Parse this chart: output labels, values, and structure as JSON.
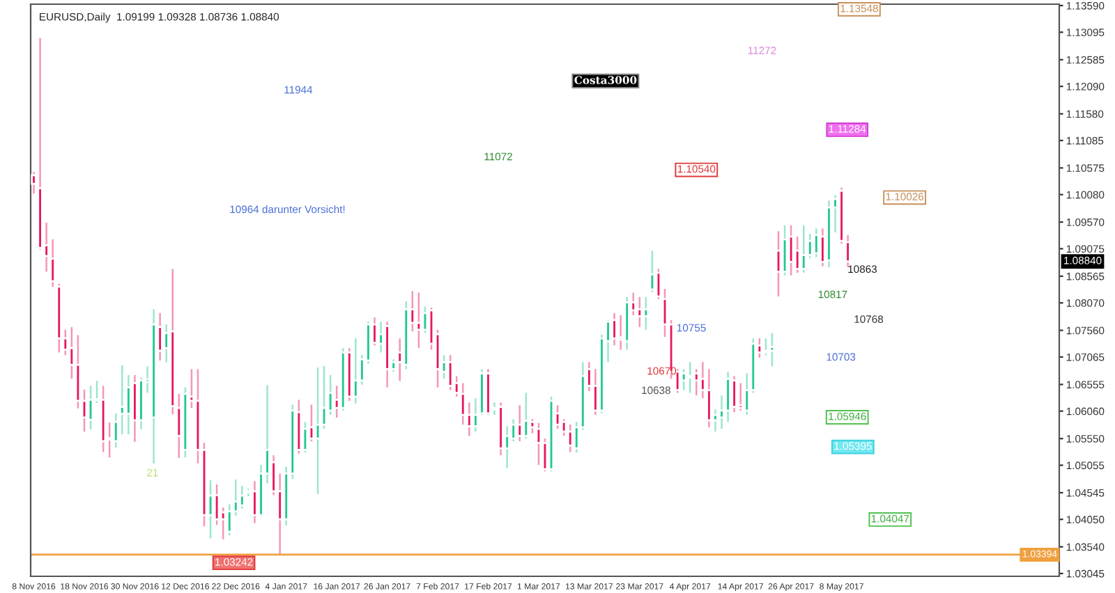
{
  "chart_data": {
    "type": "candlestick",
    "title": "EURUSD,Daily  1.09199 1.09328 1.08736 1.08840",
    "categories": [
      "8 Nov 2016",
      null,
      null,
      null,
      null,
      null,
      null,
      null,
      "18 Nov 2016",
      null,
      null,
      null,
      null,
      null,
      null,
      null,
      "30 Nov 2016",
      null,
      null,
      null,
      null,
      null,
      null,
      null,
      "12 Dec 2016",
      null,
      null,
      null,
      null,
      null,
      null,
      null,
      "22 Dec 2016",
      null,
      null,
      null,
      null,
      null,
      null,
      null,
      "4 Jan 2017",
      null,
      null,
      null,
      null,
      null,
      null,
      null,
      "16 Jan 2017",
      null,
      null,
      null,
      null,
      null,
      null,
      null,
      "26 Jan 2017",
      null,
      null,
      null,
      null,
      null,
      null,
      null,
      "7 Feb 2017",
      null,
      null,
      null,
      null,
      null,
      null,
      null,
      "17 Feb 2017",
      null,
      null,
      null,
      null,
      null,
      null,
      null,
      "1 Mar 2017",
      null,
      null,
      null,
      null,
      null,
      null,
      null,
      "13 Mar 2017",
      null,
      null,
      null,
      null,
      null,
      null,
      null,
      "23 Mar 2017",
      null,
      null,
      null,
      null,
      null,
      null,
      null,
      "4 Apr 2017",
      null,
      null,
      null,
      null,
      null,
      null,
      null,
      "14 Apr 2017",
      null,
      null,
      null,
      null,
      null,
      null,
      null,
      "26 Apr 2017",
      null,
      null,
      null,
      null,
      null,
      null,
      null,
      "8 May 2017",
      null,
      null,
      null,
      null,
      null,
      null,
      null,
      null,
      null,
      null,
      null,
      null,
      null,
      null,
      null,
      null,
      null,
      null,
      null,
      null,
      null,
      null,
      null,
      null,
      null,
      null,
      null,
      null,
      null,
      null,
      null,
      null,
      null,
      null
    ],
    "ohlc": [
      [
        1.1044,
        1.105,
        1.101,
        1.1028
      ],
      [
        1.102,
        1.1299,
        1.0906,
        1.0909
      ],
      [
        1.0914,
        1.0956,
        1.0865,
        1.0894
      ],
      [
        1.0889,
        1.0925,
        1.0837,
        1.0847
      ],
      [
        1.0837,
        1.0842,
        1.0715,
        1.0741
      ],
      [
        1.0741,
        1.0757,
        1.071,
        1.072
      ],
      [
        1.0723,
        1.0762,
        1.0666,
        1.0692
      ],
      [
        1.0692,
        1.0747,
        1.0611,
        1.0625
      ],
      [
        1.0625,
        1.0646,
        1.0568,
        1.0594
      ],
      [
        1.059,
        1.0653,
        1.0572,
        1.0627
      ],
      [
        1.0626,
        1.0662,
        1.0621,
        1.0628
      ],
      [
        1.0627,
        1.0653,
        1.053,
        1.055
      ],
      [
        1.0556,
        1.0585,
        1.052,
        1.0553
      ],
      [
        1.055,
        1.0602,
        1.0538,
        1.0586
      ],
      [
        1.0601,
        1.0691,
        1.0563,
        1.0614
      ],
      [
        1.0601,
        1.0673,
        1.0563,
        1.065
      ],
      [
        1.0658,
        1.0673,
        1.0549,
        1.0589
      ],
      [
        1.0589,
        1.0668,
        1.0572,
        1.0663
      ],
      [
        1.066,
        1.0689,
        1.064,
        1.0665
      ],
      [
        1.0594,
        1.0795,
        1.0509,
        1.0767
      ],
      [
        1.0762,
        1.0788,
        1.07,
        1.0718
      ],
      [
        1.0723,
        1.0767,
        1.0697,
        1.0751
      ],
      [
        1.0754,
        1.087,
        1.06,
        1.0615
      ],
      [
        1.0612,
        1.0638,
        1.0519,
        1.056
      ],
      [
        1.0534,
        1.065,
        1.052,
        1.0638
      ],
      [
        1.0633,
        1.0684,
        1.0612,
        1.0625
      ],
      [
        1.0625,
        1.0684,
        1.0509,
        1.0534
      ],
      [
        1.0534,
        1.0547,
        1.0392,
        1.0413
      ],
      [
        1.0413,
        1.0478,
        1.037,
        1.0449
      ],
      [
        1.045,
        1.047,
        1.0395,
        1.0405
      ],
      [
        1.0418,
        1.0427,
        1.0368,
        1.0405
      ],
      [
        1.0382,
        1.0433,
        1.0375,
        1.042
      ],
      [
        1.042,
        1.0479,
        1.0412,
        1.0438
      ],
      [
        1.0431,
        1.0467,
        1.0425,
        1.0449
      ],
      [
        1.0455,
        1.0462,
        1.0448,
        1.0458
      ],
      [
        1.0457,
        1.0476,
        1.0398,
        1.0413
      ],
      [
        1.0413,
        1.0506,
        1.041,
        1.049
      ],
      [
        1.049,
        1.0654,
        1.0472,
        1.0534
      ],
      [
        1.0511,
        1.0524,
        1.045,
        1.0457
      ],
      [
        1.0457,
        1.049,
        1.0341,
        1.0405
      ],
      [
        1.0405,
        1.0503,
        1.0394,
        1.049
      ],
      [
        1.049,
        1.0618,
        1.048,
        1.0607
      ],
      [
        1.0604,
        1.0627,
        1.0527,
        1.0534
      ],
      [
        1.0534,
        1.0586,
        1.0529,
        1.0573
      ],
      [
        1.0576,
        1.0618,
        1.055,
        1.0555
      ],
      [
        1.0555,
        1.0687,
        1.0452,
        1.0581
      ],
      [
        1.0581,
        1.069,
        1.0573,
        1.0612
      ],
      [
        1.0607,
        1.0673,
        1.0599,
        1.064
      ],
      [
        1.0627,
        1.0653,
        1.0594,
        1.0612
      ],
      [
        1.0612,
        1.0723,
        1.0607,
        1.0715
      ],
      [
        1.0715,
        1.0723,
        1.0625,
        1.0633
      ],
      [
        1.0633,
        1.0741,
        1.062,
        1.0663
      ],
      [
        1.0663,
        1.071,
        1.0655,
        1.0702
      ],
      [
        1.07,
        1.0772,
        1.0694,
        1.0767
      ],
      [
        1.0767,
        1.078,
        1.0728,
        1.0733
      ],
      [
        1.0731,
        1.0772,
        1.0715,
        1.0749
      ],
      [
        1.0764,
        1.0772,
        1.065,
        1.0684
      ],
      [
        1.0684,
        1.0702,
        1.0679,
        1.0697
      ],
      [
        1.0715,
        1.0741,
        1.0662,
        1.0697
      ],
      [
        1.0692,
        1.081,
        1.0684,
        1.0795
      ],
      [
        1.0795,
        1.0829,
        1.0754,
        1.077
      ],
      [
        1.077,
        1.0826,
        1.0723,
        1.0757
      ],
      [
        1.0757,
        1.08,
        1.0751,
        1.0788
      ],
      [
        1.0793,
        1.0798,
        1.072,
        1.0731
      ],
      [
        1.0749,
        1.0757,
        1.065,
        1.0684
      ],
      [
        1.0679,
        1.071,
        1.0666,
        1.0697
      ],
      [
        1.0697,
        1.071,
        1.0645,
        1.0653
      ],
      [
        1.0658,
        1.0671,
        1.0633,
        1.064
      ],
      [
        1.0638,
        1.0658,
        1.0581,
        1.0599
      ],
      [
        1.0599,
        1.0622,
        1.056,
        1.0578
      ],
      [
        1.0578,
        1.063,
        1.0568,
        1.0599
      ],
      [
        1.0602,
        1.0684,
        1.0599,
        1.0676
      ],
      [
        1.0676,
        1.0684,
        1.0599,
        1.0602
      ],
      [
        1.0609,
        1.0622,
        1.0599,
        1.0612
      ],
      [
        1.0614,
        1.0622,
        1.0524,
        1.0537
      ],
      [
        1.0537,
        1.0578,
        1.05,
        1.056
      ],
      [
        1.0555,
        1.0591,
        1.055,
        1.0581
      ],
      [
        1.0581,
        1.0617,
        1.055,
        1.056
      ],
      [
        1.056,
        1.064,
        1.0555,
        1.0588
      ],
      [
        1.0586,
        1.0591,
        1.0565,
        1.0576
      ],
      [
        1.0573,
        1.0584,
        1.0506,
        1.0547
      ],
      [
        1.0547,
        1.0555,
        1.0494,
        1.0498
      ],
      [
        1.0498,
        1.0633,
        1.0494,
        1.0625
      ],
      [
        1.0602,
        1.0617,
        1.0573,
        1.0581
      ],
      [
        1.0586,
        1.0591,
        1.056,
        1.0568
      ],
      [
        1.0568,
        1.0581,
        1.053,
        1.0542
      ],
      [
        1.0537,
        1.0586,
        1.0529,
        1.0576
      ],
      [
        1.0576,
        1.0697,
        1.0571,
        1.0671
      ],
      [
        1.0684,
        1.0697,
        1.0643,
        1.0653
      ],
      [
        1.0653,
        1.0684,
        1.0599,
        1.0607
      ],
      [
        1.0607,
        1.0748,
        1.0602,
        1.0741
      ],
      [
        1.0736,
        1.0775,
        1.0697,
        1.0772
      ],
      [
        1.0775,
        1.0788,
        1.0728,
        1.0741
      ],
      [
        1.0743,
        1.0784,
        1.072,
        1.0739
      ],
      [
        1.0736,
        1.0818,
        1.072,
        1.0808
      ],
      [
        1.0808,
        1.0826,
        1.0784,
        1.0793
      ],
      [
        1.0795,
        1.0818,
        1.0762,
        1.0782
      ],
      [
        1.0782,
        1.0818,
        1.0757,
        1.0795
      ],
      [
        1.0832,
        1.0904,
        1.0827,
        1.086
      ],
      [
        1.0863,
        1.087,
        1.0814,
        1.0819
      ],
      [
        1.0814,
        1.0833,
        1.0744,
        1.0767
      ],
      [
        1.0767,
        1.0775,
        1.0666,
        1.0679
      ],
      [
        1.0679,
        1.0684,
        1.064,
        1.0645
      ],
      [
        1.0663,
        1.0684,
        1.0645,
        1.0676
      ],
      [
        1.0668,
        1.0697,
        1.064,
        1.0671
      ],
      [
        1.0676,
        1.0684,
        1.0635,
        1.0663
      ],
      [
        1.0666,
        1.0697,
        1.063,
        1.0645
      ],
      [
        1.0645,
        1.0684,
        1.0576,
        1.0589
      ],
      [
        1.0589,
        1.0609,
        1.0568,
        1.0599
      ],
      [
        1.0594,
        1.0635,
        1.0573,
        1.0607
      ],
      [
        1.0607,
        1.0679,
        1.0586,
        1.0666
      ],
      [
        1.0663,
        1.0671,
        1.0604,
        1.0614
      ],
      [
        1.0617,
        1.0658,
        1.0607,
        1.0612
      ],
      [
        1.0607,
        1.0676,
        1.0599,
        1.0645
      ],
      [
        1.0645,
        1.0741,
        1.064,
        1.0731
      ],
      [
        1.0728,
        1.0741,
        1.0705,
        1.0715
      ],
      [
        1.0715,
        1.0741,
        1.071,
        1.0718
      ],
      [
        1.0718,
        1.0751,
        1.0689,
        1.0725
      ],
      [
        1.0904,
        1.094,
        1.0819,
        1.0865
      ],
      [
        1.0865,
        1.0951,
        1.0858,
        1.0925
      ],
      [
        1.093,
        1.0951,
        1.0858,
        1.0883
      ],
      [
        1.0904,
        1.093,
        1.0863,
        1.087
      ],
      [
        1.087,
        1.0951,
        1.0863,
        1.0896
      ],
      [
        1.0896,
        1.0935,
        1.089,
        1.0922
      ],
      [
        1.0899,
        1.0945,
        1.0892,
        1.0933
      ],
      [
        1.093,
        1.0945,
        1.0875,
        1.0883
      ],
      [
        1.0886,
        1.0997,
        1.0873,
        1.0984
      ],
      [
        1.0984,
        1.1007,
        1.0938,
        1.1
      ],
      [
        1.1015,
        1.1021,
        1.0917,
        1.0922
      ],
      [
        1.09199,
        1.09328,
        1.08736,
        1.0884
      ],
      null,
      null,
      null,
      null,
      null,
      null,
      null,
      null,
      null,
      null,
      null,
      null,
      null,
      null,
      null,
      null,
      null,
      null,
      null,
      null,
      null,
      null,
      null,
      null,
      null,
      null,
      null,
      null,
      null,
      null,
      null,
      null,
      null
    ],
    "colors": [
      "#e8175d",
      "#e8175d",
      "#e8175d",
      "#e8175d",
      "#e8175d",
      "#e8175d",
      "#e8175d",
      "#e8175d",
      "#e8175d",
      "#22c792",
      "#22c792",
      "#e8175d",
      "#e8175d",
      "#22c792",
      "#22c792",
      "#22c792",
      "#e8175d",
      "#22c792",
      "#22c792",
      "#22c792",
      "#e8175d",
      "#22c792",
      "#e8175d",
      "#e8175d",
      "#22c792",
      "#e8175d",
      "#e8175d",
      "#e8175d",
      "#22c792",
      "#e8175d",
      "#e8175d",
      "#22c792",
      "#22c792",
      "#22c792",
      "#22c792",
      "#e8175d",
      "#22c792",
      "#22c792",
      "#e8175d",
      "#e8175d",
      "#22c792",
      "#22c792",
      "#e8175d",
      "#22c792",
      "#e8175d",
      "#22c792",
      "#22c792",
      "#22c792",
      "#e8175d",
      "#22c792",
      "#e8175d",
      "#22c792",
      "#22c792",
      "#22c792",
      "#e8175d",
      "#22c792",
      "#e8175d",
      "#22c792",
      "#e8175d",
      "#22c792",
      "#e8175d",
      "#e8175d",
      "#22c792",
      "#e8175d",
      "#e8175d",
      "#22c792",
      "#e8175d",
      "#e8175d",
      "#e8175d",
      "#e8175d",
      "#22c792",
      "#22c792",
      "#e8175d",
      "#22c792",
      "#e8175d",
      "#22c792",
      "#22c792",
      "#e8175d",
      "#22c792",
      "#e8175d",
      "#e8175d",
      "#e8175d",
      "#22c792",
      "#e8175d",
      "#e8175d",
      "#e8175d",
      "#22c792",
      "#22c792",
      "#e8175d",
      "#e8175d",
      "#22c792",
      "#22c792",
      "#e8175d",
      "#e8175d",
      "#22c792",
      "#e8175d",
      "#e8175d",
      "#22c792",
      "#22c792",
      "#e8175d",
      "#e8175d",
      "#e8175d",
      "#e8175d",
      "#22c792",
      "#22c792",
      "#e8175d",
      "#e8175d",
      "#e8175d",
      "#22c792",
      "#22c792",
      "#22c792",
      "#e8175d",
      "#e8175d",
      "#22c792",
      "#22c792",
      "#e8175d",
      "#22c792",
      "#22c792",
      "#e8175d",
      "#22c792",
      "#e8175d",
      "#e8175d",
      "#22c792",
      "#22c792",
      "#22c792",
      "#e8175d",
      "#22c792",
      "#22c792",
      "#e8175d",
      "#e8175d",
      null,
      null,
      null,
      null,
      null,
      null,
      null,
      null,
      null,
      null,
      null,
      null,
      null,
      null,
      null,
      null,
      null,
      null,
      null,
      null,
      null,
      null,
      null,
      null,
      null,
      null,
      null,
      null,
      null,
      null,
      null,
      null,
      null
    ],
    "ylim": [
      1.02993,
      1.13616
    ],
    "yticks": [
      {
        "value": 1.1359,
        "label": "1.13590"
      },
      {
        "value": 1.13095,
        "label": "1.13095"
      },
      {
        "value": 1.12585,
        "label": "1.12585"
      },
      {
        "value": 1.1209,
        "label": "1.12090"
      },
      {
        "value": 1.1158,
        "label": "1.11580"
      },
      {
        "value": 1.11085,
        "label": "1.11085"
      },
      {
        "value": 1.10575,
        "label": "1.10575"
      },
      {
        "value": 1.1008,
        "label": "1.10080"
      },
      {
        "value": 1.0957,
        "label": "1.09570"
      },
      {
        "value": 1.09075,
        "label": "1.09075"
      },
      {
        "value": 1.08565,
        "label": "1.08565"
      },
      {
        "value": 1.0807,
        "label": "1.08070"
      },
      {
        "value": 1.0756,
        "label": "1.07560"
      },
      {
        "value": 1.07065,
        "label": "1.07065"
      },
      {
        "value": 1.06555,
        "label": "1.06555"
      },
      {
        "value": 1.0606,
        "label": "1.06060"
      },
      {
        "value": 1.0555,
        "label": "1.05550"
      },
      {
        "value": 1.05055,
        "label": "1.05055"
      },
      {
        "value": 1.04545,
        "label": "1.04545"
      },
      {
        "value": 1.0405,
        "label": "1.04050"
      },
      {
        "value": 1.0354,
        "label": "1.03540"
      },
      {
        "value": 1.03045,
        "label": "1.03045"
      }
    ],
    "ref_lines": [
      {
        "axis": "y",
        "value": 1.03394,
        "label": "1.03394",
        "color": "#f0a040"
      }
    ],
    "annotations": [
      "11944",
      "10964 darunter Vorsicht!",
      "11072",
      "11272",
      "1.13548",
      "1.11284",
      "1.10540",
      "1.10026",
      "10863",
      "10817",
      "10768",
      "10755",
      "10703",
      "10670",
      "10638",
      "1.05946",
      "1.05395",
      "1.04047",
      "1.03242",
      "21",
      "Costa3000",
      "1.08840"
    ],
    "grid": false,
    "legend": false
  }
}
